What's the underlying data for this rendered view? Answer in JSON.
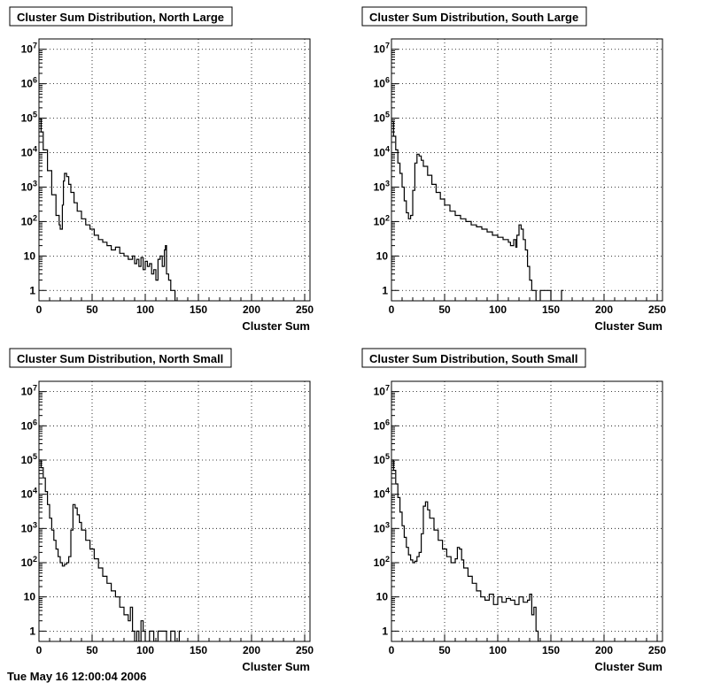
{
  "footer": {
    "timestamp": "Tue May 16 12:00:04 2006"
  },
  "chart_data": [
    {
      "type": "line",
      "title": "Cluster Sum Distribution, North Large",
      "xlabel": "Cluster Sum",
      "ylabel": "",
      "xlim": [
        0,
        255
      ],
      "ylim": [
        0.5,
        20000000
      ],
      "yscale": "log",
      "xticks": [
        0,
        50,
        100,
        150,
        200,
        250
      ],
      "yticks": [
        1,
        10,
        100,
        1000,
        10000,
        100000,
        1000000,
        10000000
      ],
      "ytick_labels": [
        "1",
        "10",
        "10^2",
        "10^3",
        "10^4",
        "10^5",
        "10^6",
        "10^7"
      ],
      "grid": true,
      "legend": "none",
      "x": [
        0,
        2,
        4,
        8,
        12,
        16,
        19,
        20,
        22,
        23,
        24,
        26,
        28,
        30,
        33,
        36,
        40,
        44,
        48,
        52,
        56,
        60,
        64,
        68,
        72,
        76,
        80,
        84,
        88,
        90,
        92,
        94,
        96,
        98,
        100,
        102,
        104,
        106,
        108,
        110,
        112,
        114,
        116,
        118,
        119,
        120,
        122,
        124,
        126,
        128,
        130
      ],
      "values": [
        100000,
        40000,
        12000,
        3000,
        600,
        150,
        80,
        60,
        300,
        1500,
        2500,
        2000,
        1200,
        700,
        350,
        200,
        120,
        80,
        60,
        40,
        30,
        25,
        20,
        15,
        18,
        12,
        10,
        8,
        10,
        6,
        8,
        5,
        9,
        4,
        7,
        5,
        6,
        3,
        4,
        2,
        8,
        10,
        5,
        15,
        20,
        3,
        2,
        1,
        1,
        0,
        0
      ]
    },
    {
      "type": "line",
      "title": "Cluster Sum Distribution, South Large",
      "xlabel": "Cluster Sum",
      "ylabel": "",
      "xlim": [
        0,
        255
      ],
      "ylim": [
        0.5,
        20000000
      ],
      "yscale": "log",
      "xticks": [
        0,
        50,
        100,
        150,
        200,
        250
      ],
      "yticks": [
        1,
        10,
        100,
        1000,
        10000,
        100000,
        1000000,
        10000000
      ],
      "ytick_labels": [
        "1",
        "10",
        "10^2",
        "10^3",
        "10^4",
        "10^5",
        "10^6",
        "10^7"
      ],
      "grid": true,
      "legend": "none",
      "x": [
        0,
        2,
        4,
        6,
        8,
        10,
        12,
        14,
        16,
        18,
        20,
        22,
        24,
        26,
        28,
        30,
        34,
        38,
        42,
        46,
        50,
        55,
        60,
        65,
        70,
        75,
        80,
        85,
        90,
        95,
        100,
        105,
        110,
        112,
        115,
        117,
        118,
        120,
        122,
        124,
        126,
        128,
        130,
        132,
        134,
        136,
        140,
        150,
        160,
        162
      ],
      "values": [
        80000,
        30000,
        12000,
        5000,
        2500,
        1000,
        400,
        180,
        120,
        150,
        800,
        5000,
        9000,
        8000,
        6000,
        4000,
        2200,
        1200,
        700,
        450,
        300,
        200,
        150,
        120,
        100,
        80,
        70,
        60,
        50,
        40,
        35,
        30,
        25,
        20,
        30,
        18,
        40,
        80,
        60,
        30,
        15,
        5,
        2,
        1,
        1,
        0,
        1,
        0,
        1,
        0
      ]
    },
    {
      "type": "line",
      "title": "Cluster Sum Distribution, North Small",
      "xlabel": "Cluster Sum",
      "ylabel": "",
      "xlim": [
        0,
        255
      ],
      "ylim": [
        0.5,
        20000000
      ],
      "yscale": "log",
      "xticks": [
        0,
        50,
        100,
        150,
        200,
        250
      ],
      "yticks": [
        1,
        10,
        100,
        1000,
        10000,
        100000,
        1000000,
        10000000
      ],
      "ytick_labels": [
        "1",
        "10",
        "10^2",
        "10^3",
        "10^4",
        "10^5",
        "10^6",
        "10^7"
      ],
      "grid": true,
      "legend": "none",
      "x": [
        0,
        2,
        4,
        6,
        8,
        10,
        12,
        14,
        16,
        18,
        20,
        22,
        24,
        26,
        28,
        30,
        32,
        34,
        36,
        38,
        40,
        44,
        48,
        52,
        56,
        60,
        64,
        68,
        72,
        76,
        80,
        84,
        86,
        88,
        90,
        92,
        94,
        96,
        98,
        100,
        104,
        108,
        112,
        116,
        120,
        124,
        128,
        132,
        134
      ],
      "values": [
        100000,
        60000,
        30000,
        12000,
        5000,
        2000,
        900,
        450,
        250,
        150,
        100,
        80,
        90,
        100,
        150,
        900,
        5000,
        4000,
        2500,
        1500,
        900,
        450,
        250,
        130,
        70,
        40,
        25,
        15,
        10,
        5,
        3,
        2,
        5,
        1,
        0,
        1,
        0,
        2,
        1,
        0,
        1,
        0,
        1,
        1,
        0,
        1,
        0,
        1,
        0
      ]
    },
    {
      "type": "line",
      "title": "Cluster Sum Distribution, South Small",
      "xlabel": "Cluster Sum",
      "ylabel": "",
      "xlim": [
        0,
        255
      ],
      "ylim": [
        0.5,
        20000000
      ],
      "yscale": "log",
      "xticks": [
        0,
        50,
        100,
        150,
        200,
        250
      ],
      "yticks": [
        1,
        10,
        100,
        1000,
        10000,
        100000,
        1000000,
        10000000
      ],
      "ytick_labels": [
        "1",
        "10",
        "10^2",
        "10^3",
        "10^4",
        "10^5",
        "10^6",
        "10^7"
      ],
      "grid": true,
      "legend": "none",
      "x": [
        0,
        2,
        4,
        6,
        8,
        10,
        12,
        14,
        16,
        18,
        20,
        22,
        24,
        26,
        28,
        30,
        32,
        34,
        36,
        40,
        44,
        48,
        52,
        56,
        60,
        62,
        64,
        66,
        68,
        72,
        76,
        80,
        84,
        88,
        92,
        96,
        100,
        104,
        108,
        112,
        116,
        120,
        124,
        128,
        130,
        132,
        134,
        136,
        138,
        140
      ],
      "values": [
        100000,
        50000,
        20000,
        8000,
        3000,
        1200,
        550,
        280,
        170,
        120,
        100,
        110,
        150,
        200,
        700,
        4500,
        6000,
        3500,
        2000,
        900,
        450,
        250,
        150,
        100,
        130,
        280,
        250,
        120,
        70,
        40,
        25,
        15,
        10,
        8,
        12,
        6,
        10,
        7,
        9,
        8,
        6,
        10,
        7,
        8,
        12,
        3,
        5,
        1,
        0,
        1
      ]
    }
  ]
}
